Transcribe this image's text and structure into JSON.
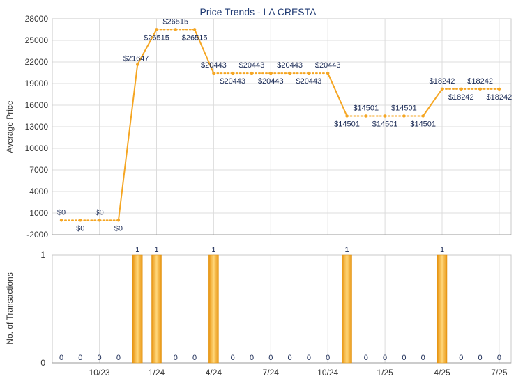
{
  "chart_data": [
    {
      "type": "line",
      "title": "Price Trends - LA CRESTA",
      "xlabel": "",
      "ylabel": "Average Price",
      "ylim": [
        -2000,
        28000
      ],
      "yticks": [
        -2000,
        1000,
        4000,
        7000,
        10000,
        13000,
        16000,
        19000,
        22000,
        25000,
        28000
      ],
      "grid": true,
      "series": [
        {
          "x": [
            "8/23",
            "9/23",
            "10/23",
            "11/23",
            "12/23",
            "1/24",
            "2/24",
            "3/24",
            "4/24",
            "5/24",
            "6/24",
            "7/24",
            "8/24",
            "9/24",
            "10/24",
            "11/24",
            "12/24",
            "1/25",
            "2/25",
            "3/25",
            "4/25",
            "5/25",
            "6/25",
            "7/25"
          ],
          "values": [
            0,
            0,
            0,
            0,
            21647,
            26515,
            26515,
            26515,
            20443,
            20443,
            20443,
            20443,
            20443,
            20443,
            20443,
            14501,
            14501,
            14501,
            14501,
            14501,
            18242,
            18242,
            18242,
            18242
          ],
          "labels": [
            "$0",
            "$0",
            "$0",
            "$0",
            "$21647",
            "$26515",
            "$26515",
            "$26515",
            "$20443",
            "$20443",
            "$20443",
            "$20443",
            "$20443",
            "$20443",
            "$20443",
            "$14501",
            "$14501",
            "$14501",
            "$14501",
            "$14501",
            "$18242",
            "$18242",
            "$18242",
            "$18242"
          ],
          "transaction_month": [
            false,
            false,
            false,
            false,
            true,
            true,
            false,
            false,
            true,
            false,
            false,
            false,
            false,
            false,
            false,
            true,
            false,
            false,
            false,
            false,
            true,
            false,
            false,
            false
          ]
        }
      ],
      "line_color": "#f5a623"
    },
    {
      "type": "bar",
      "xlabel": "",
      "ylabel": "No. of Transactions",
      "ylim": [
        0,
        1
      ],
      "yticks": [
        0,
        1
      ],
      "grid": true,
      "x": [
        "8/23",
        "9/23",
        "10/23",
        "11/23",
        "12/23",
        "1/24",
        "2/24",
        "3/24",
        "4/24",
        "5/24",
        "6/24",
        "7/24",
        "8/24",
        "9/24",
        "10/24",
        "11/24",
        "12/24",
        "1/25",
        "2/25",
        "3/25",
        "4/25",
        "5/25",
        "6/25",
        "7/25"
      ],
      "values": [
        0,
        0,
        0,
        0,
        1,
        1,
        0,
        0,
        1,
        0,
        0,
        0,
        0,
        0,
        0,
        1,
        0,
        0,
        0,
        0,
        1,
        0,
        0,
        0
      ],
      "labels": [
        "0",
        "0",
        "0",
        "0",
        "1",
        "1",
        "0",
        "0",
        "1",
        "0",
        "0",
        "0",
        "0",
        "0",
        "0",
        "1",
        "0",
        "0",
        "0",
        "0",
        "1",
        "0",
        "0",
        "0"
      ],
      "x_tick_labels": [
        "10/23",
        "1/24",
        "4/24",
        "7/24",
        "10/24",
        "1/25",
        "4/25",
        "7/25"
      ],
      "bar_color": "#f0a21c"
    }
  ]
}
